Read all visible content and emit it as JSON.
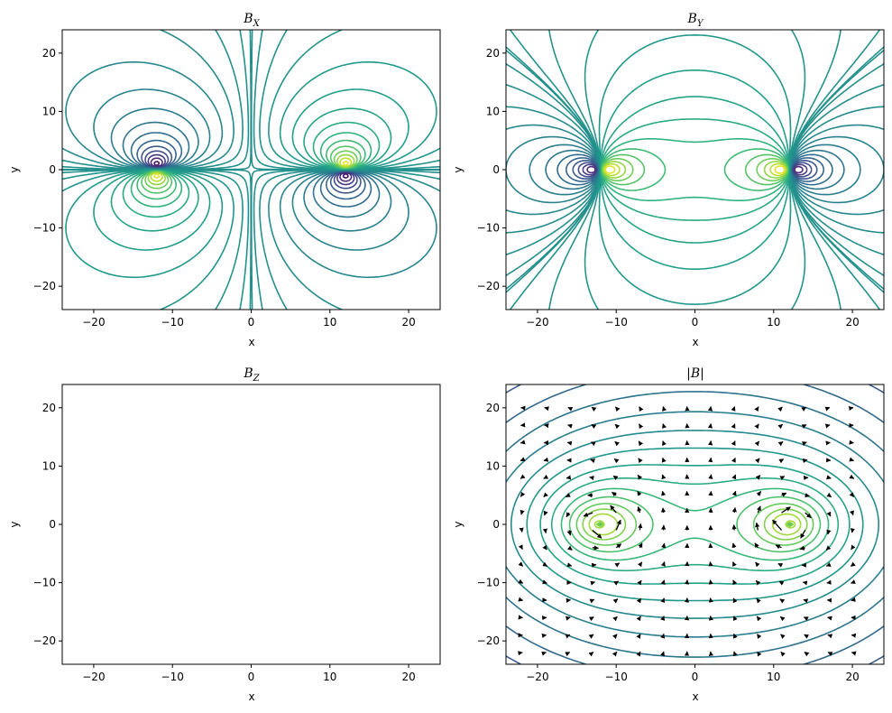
{
  "chart_data": [
    {
      "type": "contour",
      "title": "B",
      "title_subscript": "X",
      "xlabel": "x",
      "ylabel": "y",
      "xlim": [
        -24,
        24
      ],
      "ylim": [
        -24,
        24
      ],
      "xticks": [
        -20,
        -10,
        0,
        10,
        20
      ],
      "yticks": [
        -20,
        -10,
        0,
        10,
        20
      ],
      "field": "Bx",
      "colormap": "viridis",
      "sources": [
        {
          "x": -12,
          "y": 0
        },
        {
          "x": 12,
          "y": 0
        }
      ],
      "has_quiver": false
    },
    {
      "type": "contour",
      "title": "B",
      "title_subscript": "Y",
      "xlabel": "x",
      "ylabel": "y",
      "xlim": [
        -24,
        24
      ],
      "ylim": [
        -24,
        24
      ],
      "xticks": [
        -20,
        -10,
        0,
        10,
        20
      ],
      "yticks": [
        -20,
        -10,
        0,
        10,
        20
      ],
      "field": "By",
      "colormap": "viridis",
      "sources": [
        {
          "x": -12,
          "y": 0
        },
        {
          "x": 12,
          "y": 0
        }
      ],
      "has_quiver": false
    },
    {
      "type": "contour",
      "title": "B",
      "title_subscript": "Z",
      "xlabel": "x",
      "ylabel": "y",
      "xlim": [
        -24,
        24
      ],
      "ylim": [
        -24,
        24
      ],
      "xticks": [
        -20,
        -10,
        0,
        10,
        20
      ],
      "yticks": [
        -20,
        -10,
        0,
        10,
        20
      ],
      "field": "Bz",
      "colormap": "viridis",
      "sources": [],
      "has_quiver": false
    },
    {
      "type": "contour",
      "title": "|B|",
      "title_subscript": "",
      "xlabel": "x",
      "ylabel": "y",
      "xlim": [
        -24,
        24
      ],
      "ylim": [
        -24,
        24
      ],
      "xticks": [
        -20,
        -10,
        0,
        10,
        20
      ],
      "yticks": [
        -20,
        -10,
        0,
        10,
        20
      ],
      "field": "Bmag",
      "colormap": "viridis",
      "sources": [
        {
          "x": -12,
          "y": 0
        },
        {
          "x": 12,
          "y": 0
        }
      ],
      "has_quiver": true,
      "quiver_color": "#000000"
    }
  ]
}
